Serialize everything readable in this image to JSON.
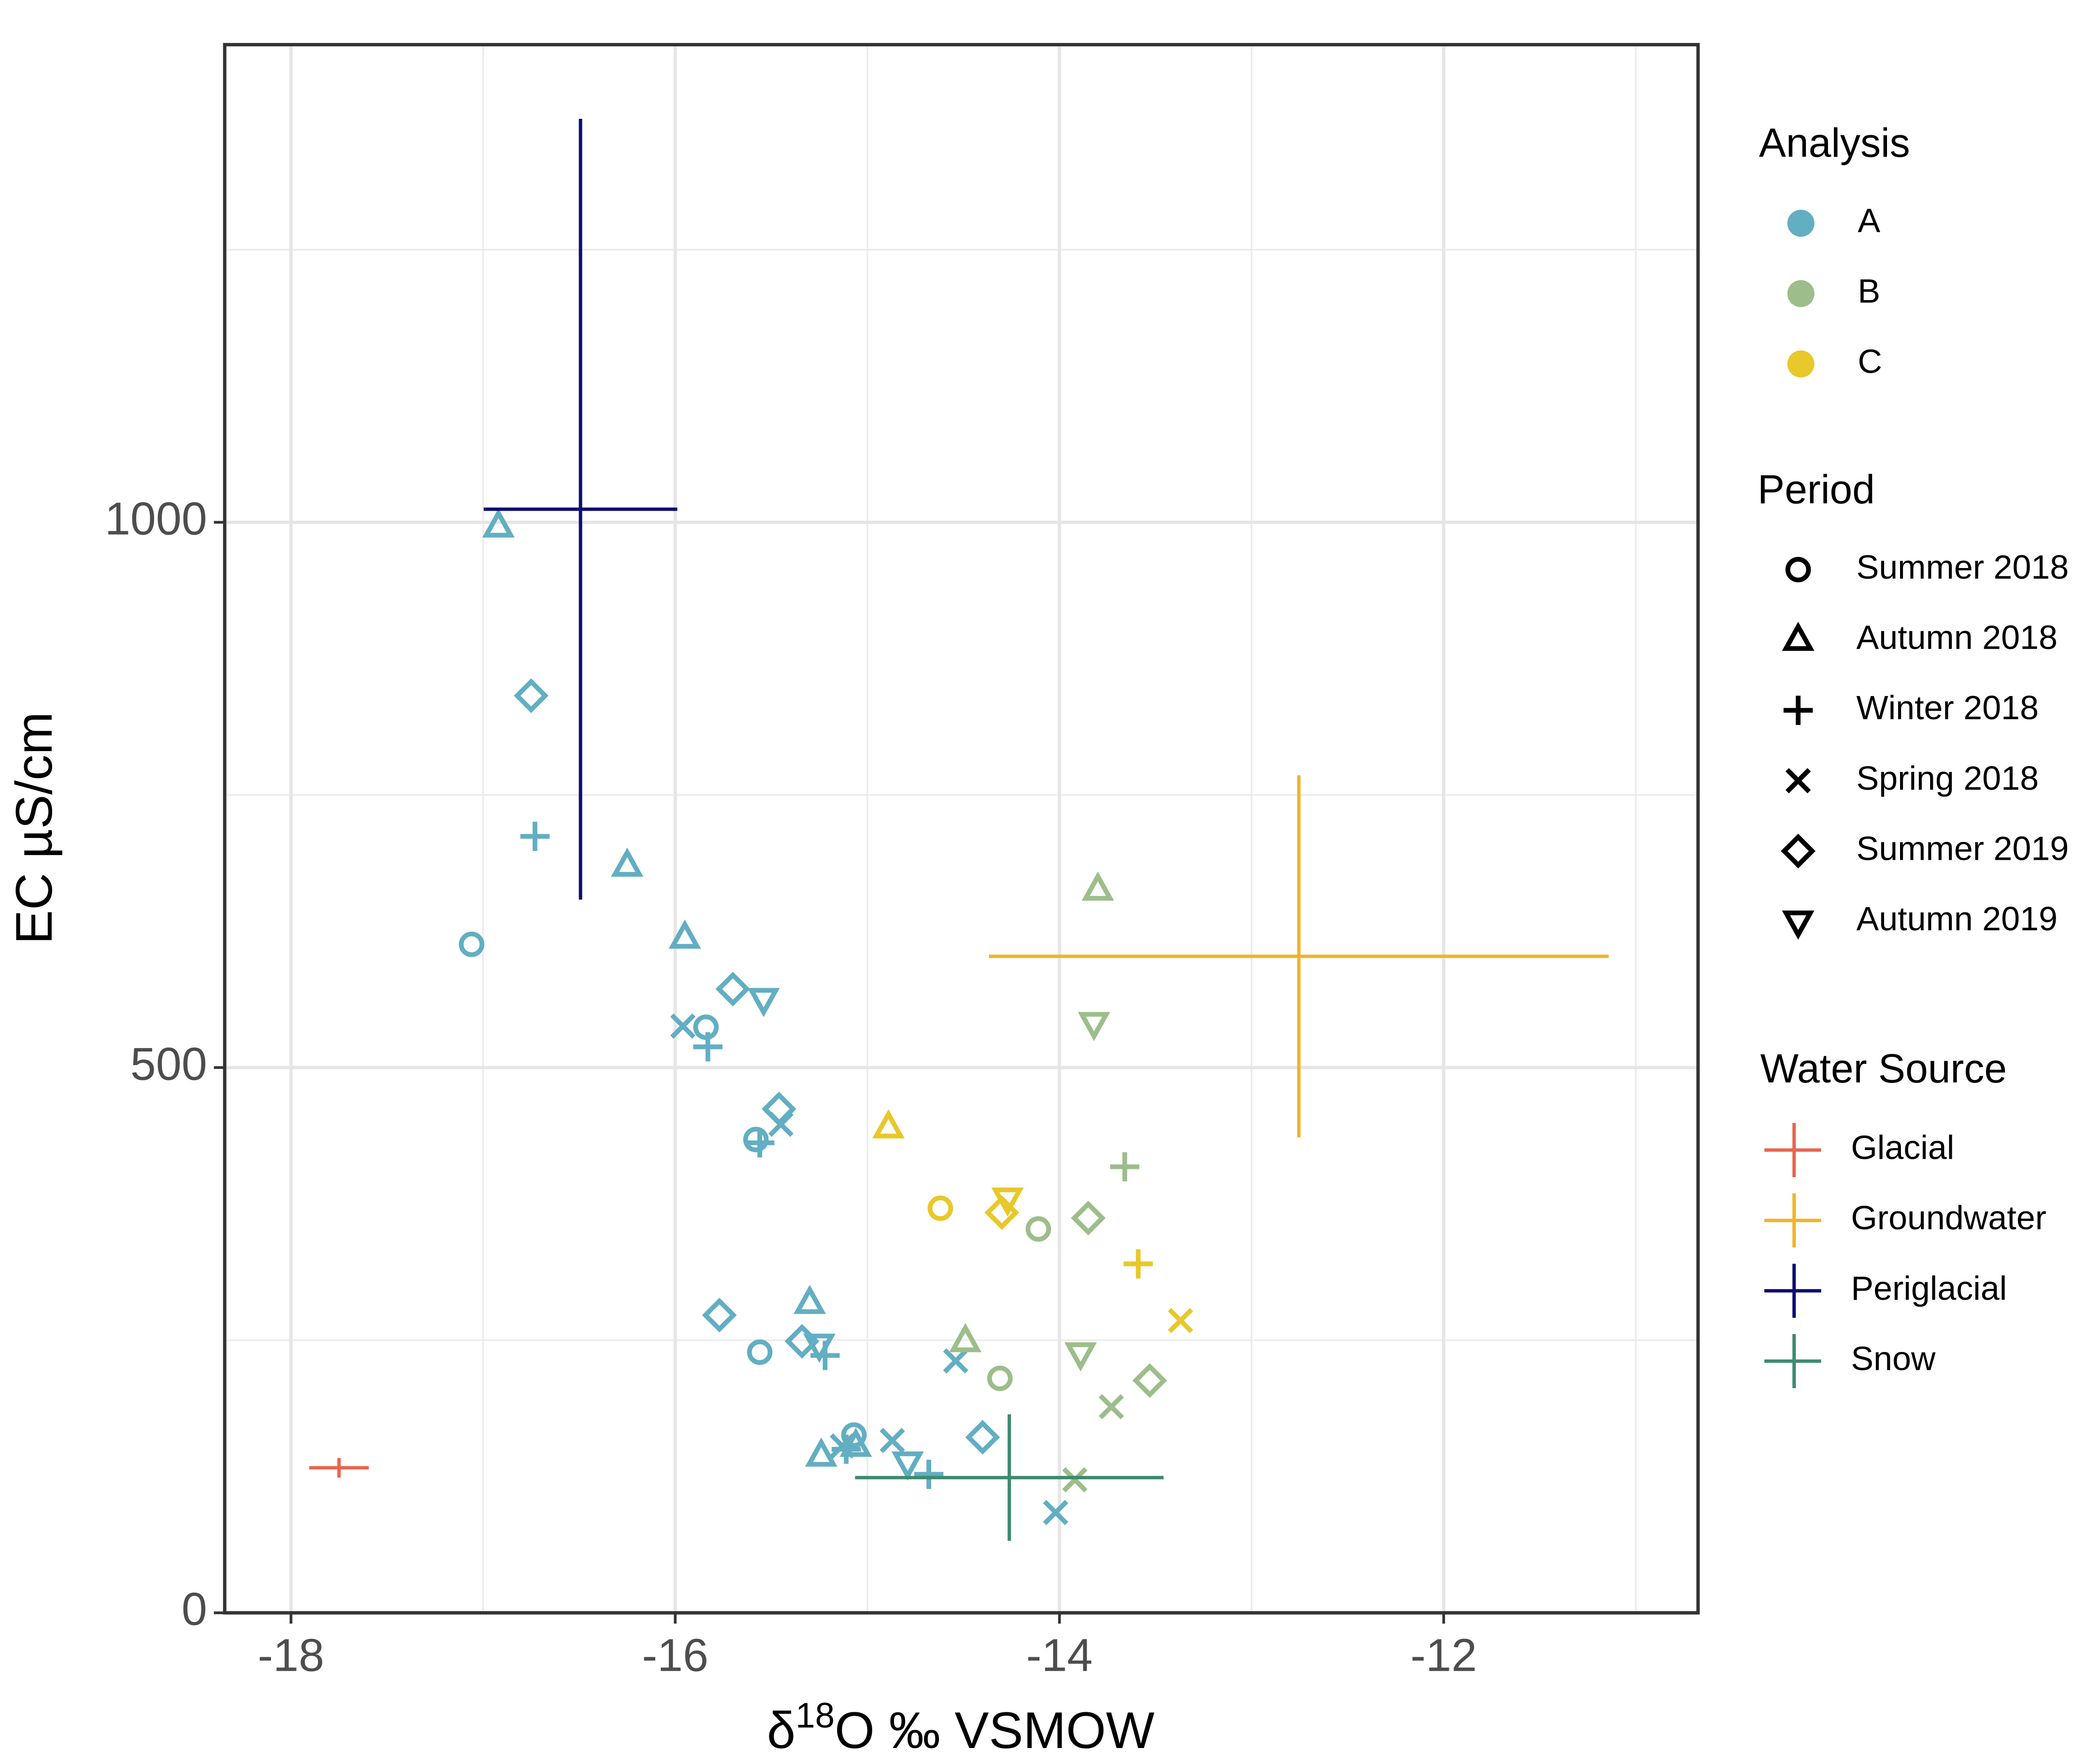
{
  "chart_data": {
    "type": "scatter",
    "x_label": {
      "pre": "δ",
      "sup": "18",
      "post": "O ‰ VSMOW"
    },
    "y_label": "EC µS/cm",
    "xlim": [
      -18.345,
      -10.676
    ],
    "ylim": [
      0,
      1438
    ],
    "xticks": [
      -18,
      -16,
      -14,
      -12
    ],
    "xminor": [
      -17,
      -15,
      -13,
      -11
    ],
    "yticks": [
      0,
      500,
      1000
    ],
    "yminor": [
      250,
      750,
      1250
    ],
    "grid": true,
    "analysis": {
      "title": "Analysis",
      "labels": [
        "A",
        "B",
        "C"
      ],
      "colors": [
        "#62aec2",
        "#9dbd8b",
        "#e8c82a"
      ]
    },
    "period": {
      "title": "Period",
      "labels": [
        "Summer 2018",
        "Autumn 2018",
        "Winter 2018",
        "Spring 2018",
        "Summer 2019",
        "Autumn 2019"
      ],
      "shapes": [
        "circle",
        "triangle",
        "plus",
        "cross",
        "diamond",
        "triangle-down"
      ]
    },
    "points": [
      {
        "x": -17.06,
        "y": 613,
        "analysis": "A",
        "period": "Summer 2018"
      },
      {
        "x": -15.84,
        "y": 537,
        "analysis": "A",
        "period": "Summer 2018"
      },
      {
        "x": -15.58,
        "y": 434,
        "analysis": "A",
        "period": "Summer 2018"
      },
      {
        "x": -15.56,
        "y": 239,
        "analysis": "A",
        "period": "Summer 2018"
      },
      {
        "x": -15.07,
        "y": 163,
        "analysis": "A",
        "period": "Summer 2018"
      },
      {
        "x": -16.92,
        "y": 996,
        "analysis": "A",
        "period": "Autumn 2018"
      },
      {
        "x": -16.25,
        "y": 685,
        "analysis": "A",
        "period": "Autumn 2018"
      },
      {
        "x": -15.95,
        "y": 619,
        "analysis": "A",
        "period": "Autumn 2018"
      },
      {
        "x": -15.3,
        "y": 284,
        "analysis": "A",
        "period": "Autumn 2018"
      },
      {
        "x": -15.24,
        "y": 144,
        "analysis": "A",
        "period": "Autumn 2018"
      },
      {
        "x": -15.06,
        "y": 153,
        "analysis": "A",
        "period": "Autumn 2018"
      },
      {
        "x": -16.73,
        "y": 712,
        "analysis": "A",
        "period": "Winter 2018"
      },
      {
        "x": -15.83,
        "y": 519,
        "analysis": "A",
        "period": "Winter 2018"
      },
      {
        "x": -15.56,
        "y": 431,
        "analysis": "A",
        "period": "Winter 2018"
      },
      {
        "x": -15.22,
        "y": 236,
        "analysis": "A",
        "period": "Winter 2018"
      },
      {
        "x": -14.68,
        "y": 127,
        "analysis": "A",
        "period": "Winter 2018"
      },
      {
        "x": -15.11,
        "y": 150,
        "analysis": "A",
        "period": "Winter 2018"
      },
      {
        "x": -15.96,
        "y": 538,
        "analysis": "A",
        "period": "Spring 2018"
      },
      {
        "x": -15.45,
        "y": 448,
        "analysis": "A",
        "period": "Spring 2018"
      },
      {
        "x": -14.54,
        "y": 231,
        "analysis": "A",
        "period": "Spring 2018"
      },
      {
        "x": -14.87,
        "y": 158,
        "analysis": "A",
        "period": "Spring 2018"
      },
      {
        "x": -14.02,
        "y": 92,
        "analysis": "A",
        "period": "Spring 2018"
      },
      {
        "x": -15.13,
        "y": 153,
        "analysis": "A",
        "period": "Spring 2018"
      },
      {
        "x": -16.75,
        "y": 841,
        "analysis": "A",
        "period": "Summer 2019"
      },
      {
        "x": -15.7,
        "y": 572,
        "analysis": "A",
        "period": "Summer 2019"
      },
      {
        "x": -15.46,
        "y": 462,
        "analysis": "A",
        "period": "Summer 2019"
      },
      {
        "x": -15.77,
        "y": 273,
        "analysis": "A",
        "period": "Summer 2019"
      },
      {
        "x": -15.34,
        "y": 249,
        "analysis": "A",
        "period": "Summer 2019"
      },
      {
        "x": -14.4,
        "y": 161,
        "analysis": "A",
        "period": "Summer 2019"
      },
      {
        "x": -15.54,
        "y": 563,
        "analysis": "A",
        "period": "Autumn 2019"
      },
      {
        "x": -15.25,
        "y": 246,
        "analysis": "A",
        "period": "Autumn 2019"
      },
      {
        "x": -14.79,
        "y": 138,
        "analysis": "A",
        "period": "Autumn 2019"
      },
      {
        "x": -13.8,
        "y": 663,
        "analysis": "B",
        "period": "Autumn 2018"
      },
      {
        "x": -14.49,
        "y": 249,
        "analysis": "B",
        "period": "Autumn 2018"
      },
      {
        "x": -14.11,
        "y": 352,
        "analysis": "B",
        "period": "Summer 2018"
      },
      {
        "x": -14.31,
        "y": 215,
        "analysis": "B",
        "period": "Summer 2018"
      },
      {
        "x": -13.66,
        "y": 409,
        "analysis": "B",
        "period": "Winter 2018"
      },
      {
        "x": -13.85,
        "y": 362,
        "analysis": "B",
        "period": "Summer 2019"
      },
      {
        "x": -13.53,
        "y": 213,
        "analysis": "B",
        "period": "Summer 2019"
      },
      {
        "x": -13.82,
        "y": 541,
        "analysis": "B",
        "period": "Autumn 2019"
      },
      {
        "x": -13.89,
        "y": 238,
        "analysis": "B",
        "period": "Autumn 2019"
      },
      {
        "x": -13.73,
        "y": 189,
        "analysis": "B",
        "period": "Spring 2018"
      },
      {
        "x": -13.92,
        "y": 122,
        "analysis": "B",
        "period": "Spring 2018"
      },
      {
        "x": -14.89,
        "y": 445,
        "analysis": "C",
        "period": "Autumn 2018"
      },
      {
        "x": -14.62,
        "y": 371,
        "analysis": "C",
        "period": "Summer 2018"
      },
      {
        "x": -14.27,
        "y": 380,
        "analysis": "C",
        "period": "Autumn 2019"
      },
      {
        "x": -14.3,
        "y": 367,
        "analysis": "C",
        "period": "Summer 2019"
      },
      {
        "x": -13.59,
        "y": 320,
        "analysis": "C",
        "period": "Winter 2018"
      },
      {
        "x": -13.37,
        "y": 268,
        "analysis": "C",
        "period": "Spring 2018"
      }
    ],
    "water_source": {
      "title": "Water Source",
      "items": [
        {
          "name": "Glacial",
          "color": "#e8654d",
          "x": -17.75,
          "xerr": 0.155,
          "y": 133,
          "yerr": 9
        },
        {
          "name": "Groundwater",
          "color": "#f0b429",
          "x": -12.754,
          "xerr": 1.613,
          "y": 602,
          "yerr": 166
        },
        {
          "name": "Periglacial",
          "color": "#0d0d73",
          "x": -16.493,
          "xerr": 0.504,
          "y": 1012,
          "yerr": 358
        },
        {
          "name": "Snow",
          "color": "#3d8a6e",
          "x": -14.261,
          "xerr": 0.803,
          "y": 124,
          "yerr": 58
        }
      ]
    }
  }
}
